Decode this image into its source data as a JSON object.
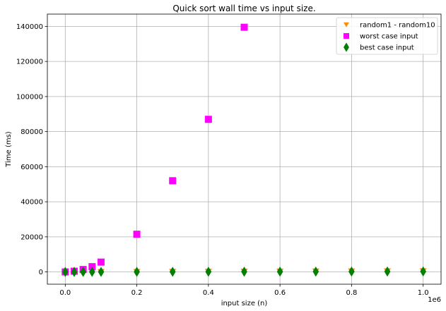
{
  "chart_data": {
    "type": "scatter",
    "title": "Quick sort wall time vs input size.",
    "xlabel": "input size (n)",
    "ylabel": "Time (ms)",
    "x_offset_text": "1e6",
    "xlim": [
      -50000,
      1050000
    ],
    "ylim": [
      -7000,
      147000
    ],
    "x_ticks": [
      0,
      200000,
      400000,
      600000,
      800000,
      1000000
    ],
    "x_tick_labels": [
      "0.0",
      "0.2",
      "0.4",
      "0.6",
      "0.8",
      "1.0"
    ],
    "y_ticks": [
      0,
      20000,
      40000,
      60000,
      80000,
      100000,
      120000,
      140000
    ],
    "y_tick_labels": [
      "0",
      "20000",
      "40000",
      "60000",
      "80000",
      "100000",
      "120000",
      "140000"
    ],
    "grid": true,
    "legend_position": "top-right",
    "series": [
      {
        "name": "random1 - random10",
        "marker": "triangle-down",
        "color": "#ff8c00",
        "x": [
          0,
          25000,
          50000,
          75000,
          100000,
          200000,
          300000,
          400000,
          500000,
          600000,
          700000,
          800000,
          900000,
          1000000
        ],
        "y": [
          0,
          10,
          20,
          30,
          40,
          90,
          140,
          190,
          240,
          290,
          340,
          390,
          440,
          490
        ]
      },
      {
        "name": "worst case input",
        "marker": "square",
        "color": "#ff00ff",
        "x": [
          0,
          25000,
          50000,
          75000,
          100000,
          200000,
          300000,
          400000,
          500000
        ],
        "y": [
          0,
          400,
          1400,
          3000,
          5600,
          21500,
          52000,
          87000,
          139500
        ]
      },
      {
        "name": "best case input",
        "marker": "diamond",
        "color": "#008000",
        "x": [
          0,
          25000,
          50000,
          75000,
          100000,
          200000,
          300000,
          400000,
          500000,
          600000,
          700000,
          800000,
          900000,
          1000000
        ],
        "y": [
          0,
          5,
          10,
          15,
          20,
          45,
          70,
          95,
          120,
          145,
          170,
          195,
          220,
          245
        ]
      }
    ]
  }
}
